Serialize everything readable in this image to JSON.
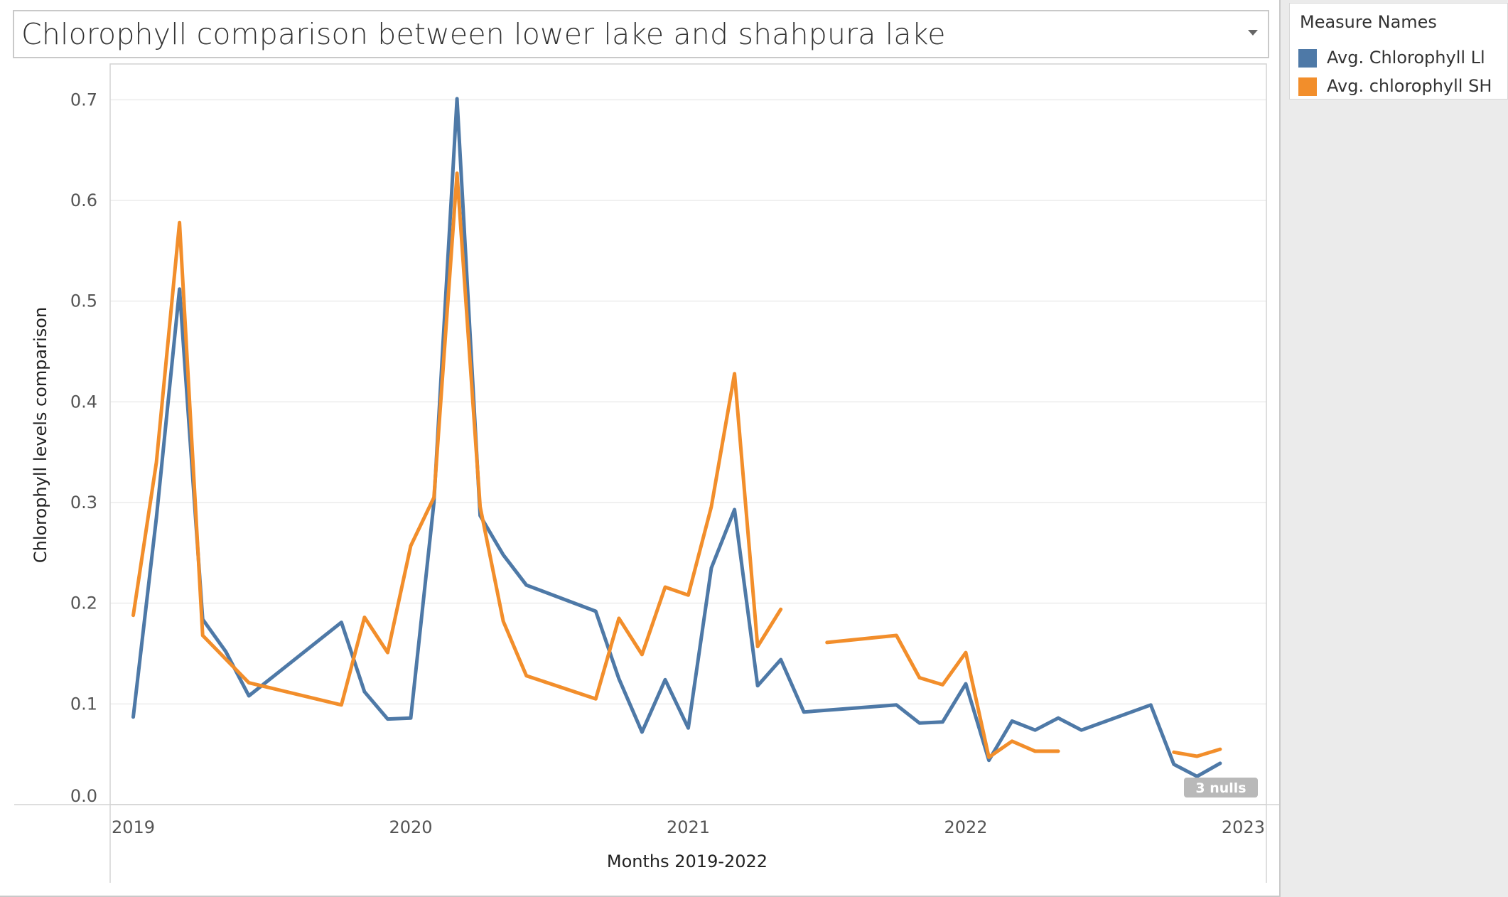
{
  "title": "Chlorophyll comparison between lower lake and shahpura lake",
  "legend": {
    "title": "Measure Names",
    "items": [
      {
        "label": "Avg. Chlorophyll Ll",
        "color": "#4e79a7"
      },
      {
        "label": "Avg. chlorophyll SH",
        "color": "#f28e2b"
      }
    ]
  },
  "null_badge": "3 nulls",
  "chart_data": {
    "type": "line",
    "xlabel": "Months 2019-2022",
    "ylabel": "Chlorophyll levels comparison",
    "x_ticks": [
      "2019",
      "2020",
      "2021",
      "2022",
      "2023"
    ],
    "xlim": [
      "2018-12",
      "2023-02"
    ],
    "y_ticks": [
      "0.0",
      "0.1",
      "0.2",
      "0.3",
      "0.4",
      "0.5",
      "0.6",
      "0.7"
    ],
    "ylim": [
      0,
      0.72
    ],
    "grid": "horizontal",
    "legend_position": "right",
    "series": [
      {
        "name": "Avg. Chlorophyll Ll",
        "color": "#4e79a7",
        "points": [
          [
            "2019-01",
            0.087
          ],
          [
            "2019-02",
            0.285
          ],
          [
            "2019-03",
            0.512
          ],
          [
            "2019-04",
            0.184
          ],
          [
            "2019-05",
            0.152
          ],
          [
            "2019-06",
            0.108
          ],
          [
            "2019-10",
            0.181
          ],
          [
            "2019-11",
            0.112
          ],
          [
            "2019-12",
            0.085
          ],
          [
            "2020-01",
            0.086
          ],
          [
            "2020-02",
            0.3
          ],
          [
            "2020-03",
            0.701
          ],
          [
            "2020-04",
            0.287
          ],
          [
            "2020-05",
            0.248
          ],
          [
            "2020-06",
            0.218
          ],
          [
            "2020-09",
            0.192
          ],
          [
            "2020-10",
            0.125
          ],
          [
            "2020-11",
            0.072
          ],
          [
            "2020-12",
            0.124
          ],
          [
            "2021-01",
            0.076
          ],
          [
            "2021-02",
            0.235
          ],
          [
            "2021-03",
            0.293
          ],
          [
            "2021-04",
            0.118
          ],
          [
            "2021-05",
            0.144
          ],
          [
            "2021-06",
            0.092
          ],
          [
            "2021-10",
            0.099
          ],
          [
            "2021-11",
            0.081
          ],
          [
            "2021-12",
            0.082
          ],
          [
            "2022-01",
            0.12
          ],
          [
            "2022-02",
            0.044
          ],
          [
            "2022-03",
            0.083
          ],
          [
            "2022-04",
            0.074
          ],
          [
            "2022-05",
            0.086
          ],
          [
            "2022-06",
            0.074
          ],
          [
            "2022-09",
            0.099
          ],
          [
            "2022-10",
            0.04
          ],
          [
            "2022-11",
            0.028
          ],
          [
            "2022-12",
            0.041
          ]
        ]
      },
      {
        "name": "Avg. chlorophyll SH",
        "color": "#f28e2b",
        "points": [
          [
            "2019-01",
            0.188
          ],
          [
            "2019-02",
            0.34
          ],
          [
            "2019-03",
            0.578
          ],
          [
            "2019-04",
            0.168
          ],
          [
            "2019-06",
            0.121
          ],
          [
            "2019-10",
            0.099
          ],
          [
            "2019-11",
            0.186
          ],
          [
            "2019-12",
            0.151
          ],
          [
            "2020-01",
            0.257
          ],
          [
            "2020-02",
            0.305
          ],
          [
            "2020-03",
            0.627
          ],
          [
            "2020-04",
            0.296
          ],
          [
            "2020-05",
            0.182
          ],
          [
            "2020-06",
            0.128
          ],
          [
            "2020-09",
            0.105
          ],
          [
            "2020-10",
            0.185
          ],
          [
            "2020-11",
            0.149
          ],
          [
            "2020-12",
            0.216
          ],
          [
            "2021-01",
            0.208
          ],
          [
            "2021-02",
            0.296
          ],
          [
            "2021-03",
            0.428
          ],
          [
            "2021-04",
            0.157
          ],
          [
            "2021-05",
            0.194
          ],
          [
            "2021-06",
            null
          ],
          [
            "2021-07",
            0.161
          ],
          [
            "2021-10",
            0.168
          ],
          [
            "2021-11",
            0.126
          ],
          [
            "2021-12",
            0.119
          ],
          [
            "2022-01",
            0.151
          ],
          [
            "2022-02",
            0.047
          ],
          [
            "2022-03",
            0.063
          ],
          [
            "2022-04",
            0.053
          ],
          [
            "2022-05",
            0.053
          ],
          [
            "2022-06",
            null
          ],
          [
            "2022-10",
            0.052
          ],
          [
            "2022-11",
            0.048
          ],
          [
            "2022-12",
            0.055
          ]
        ]
      }
    ]
  }
}
